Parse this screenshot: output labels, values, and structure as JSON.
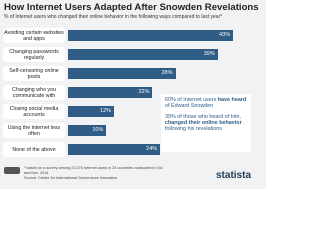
{
  "chart_data": {
    "type": "bar",
    "orientation": "horizontal",
    "title": "How Internet Users Adapted After Snowden Revelations",
    "subtitle": "% of Internet users who changed their online behavior in the following ways compared to last year*",
    "categories": [
      "Avoiding certain websites and apps",
      "Changing passwords regularly",
      "Self-censoring online posts",
      "Changing who you communicate with",
      "Closing social media accounts",
      "Using the internet less often",
      "None of the above"
    ],
    "values": [
      43,
      39,
      28,
      22,
      12,
      10,
      24
    ],
    "value_labels": [
      "43%",
      "39%",
      "28%",
      "22%",
      "12%",
      "10%",
      "24%"
    ],
    "color": "#2f5d86",
    "xlim": [
      0,
      50
    ],
    "annotations": [
      [
        "60% of Internet users ",
        "have heard",
        " of Edward Snowden"
      ],
      [
        "39% of those who heard of him, ",
        "changed their online behavior",
        " following his revelations"
      ]
    ],
    "footnote": "* based on a survey among 23,376 Internet users in 24 countries conducted in Oct. and Nov. 2014",
    "source": "Source: Centre for International Governance Innovation",
    "brand": "statista"
  }
}
